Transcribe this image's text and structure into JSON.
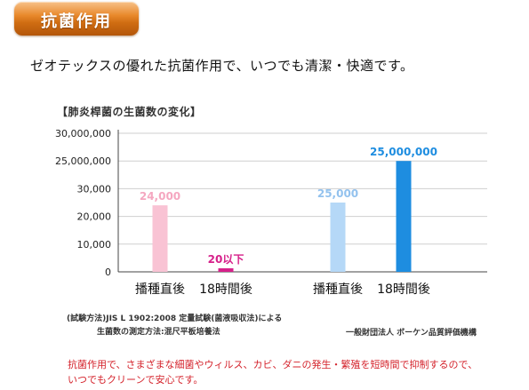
{
  "header": {
    "title": "抗菌作用"
  },
  "tagline": "ゼオテックスの優れた抗菌作用で、いつでも清潔・快適です。",
  "chart_data": {
    "type": "bar",
    "title": "【肺炎桿菌の生菌数の変化】",
    "yticks": [
      "30,000,000",
      "25,000,000",
      "30,000",
      "20,000",
      "10,000",
      "0"
    ],
    "groups": [
      {
        "bars": [
          {
            "label": "播種直後",
            "value_label": "24,000",
            "value": 24000,
            "color": "#f9c3d4",
            "label_color": "#f5a7c0"
          },
          {
            "label": "18時間後",
            "value_label": "20以下",
            "value": 20,
            "color": "#d6208a",
            "label_color": "#d6208a"
          }
        ]
      },
      {
        "bars": [
          {
            "label": "播種直後",
            "value_label": "25,000",
            "value": 25000,
            "color": "#b5d8f7",
            "label_color": "#93c2ee"
          },
          {
            "label": "18時間後",
            "value_label": "25,000,000",
            "value": 25000000,
            "color": "#1e8de0",
            "label_color": "#1e8de0"
          }
        ]
      }
    ],
    "grid": true
  },
  "method_line_1": "(試験方法)JIS L 1902:2008 定量試験(菌液吸収法)による",
  "method_line_2": "生菌数の測定方法:混尺平板培養法",
  "evaluator": "一般財団法人 ボーケン品質評価機構",
  "footer_note": "抗菌作用で、さまざまな細菌やウィルス、カビ、ダニの発生・繁殖を短時間で抑制するので、いつでもクリーンで安心です。"
}
